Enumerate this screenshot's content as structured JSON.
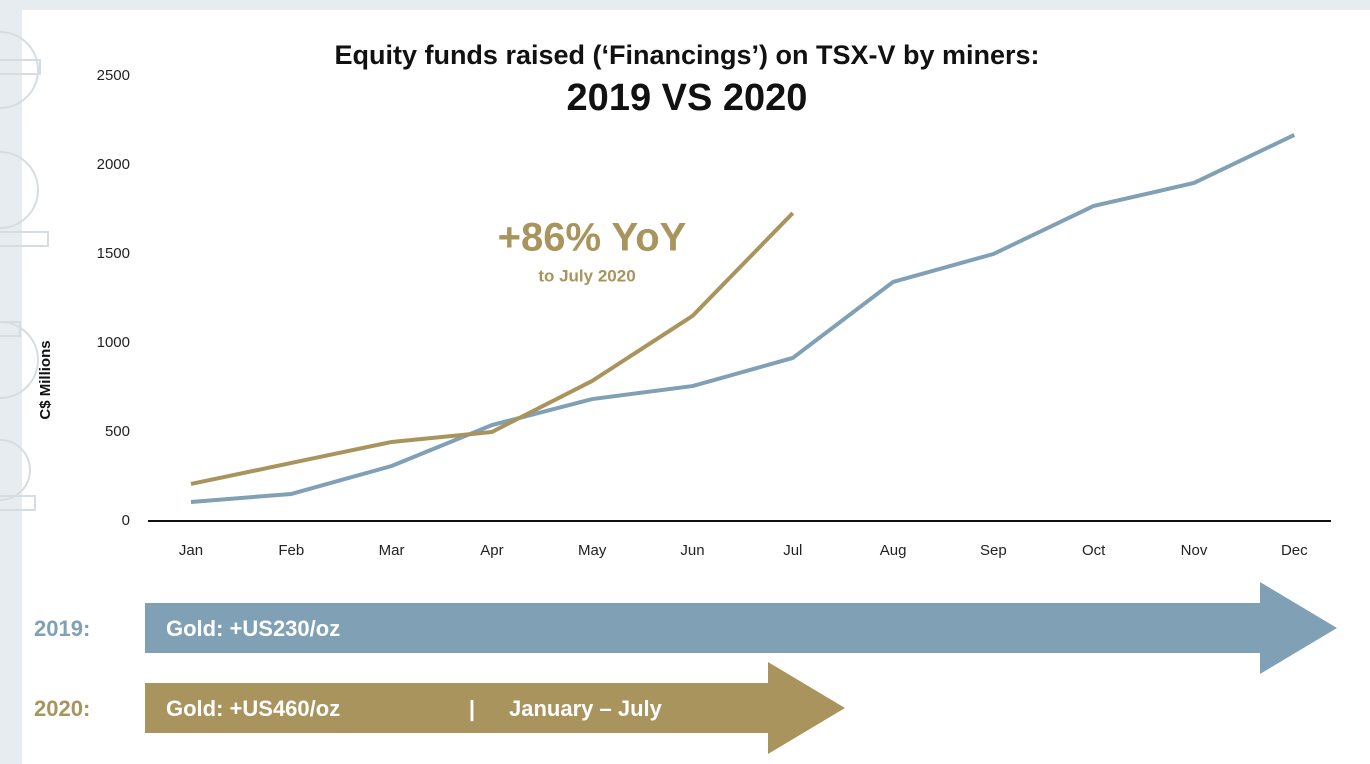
{
  "chart_data": {
    "type": "line",
    "title": "Equity funds raised (‘Financings’) on TSX-V by miners:",
    "subtitle": "2019 VS 2020",
    "y_label": "C$ Millions",
    "categories": [
      "Jan",
      "Feb",
      "Mar",
      "Apr",
      "May",
      "Jun",
      "Jul",
      "Aug",
      "Sep",
      "Oct",
      "Nov",
      "Dec"
    ],
    "series": [
      {
        "name": "2019:",
        "color": "#7fa0b5",
        "values": [
          107,
          152,
          309,
          539,
          685,
          758,
          916,
          1343,
          1500,
          1770,
          1899,
          2169
        ],
        "note": "Gold: +US230/oz"
      },
      {
        "name": "2020:",
        "color": "#a8945c",
        "values": [
          208,
          326,
          444,
          500,
          787,
          1152,
          1730,
          null,
          null,
          null,
          null,
          null
        ],
        "note": "Gold: +US460/oz",
        "separator": "|",
        "period": "January – July"
      }
    ],
    "annotation": {
      "text": "+86% YoY",
      "subtext": "to July 2020"
    },
    "ylim": [
      0,
      2500
    ],
    "yticks": [
      0,
      500,
      1000,
      1500,
      2000,
      2500
    ],
    "grid": false
  }
}
